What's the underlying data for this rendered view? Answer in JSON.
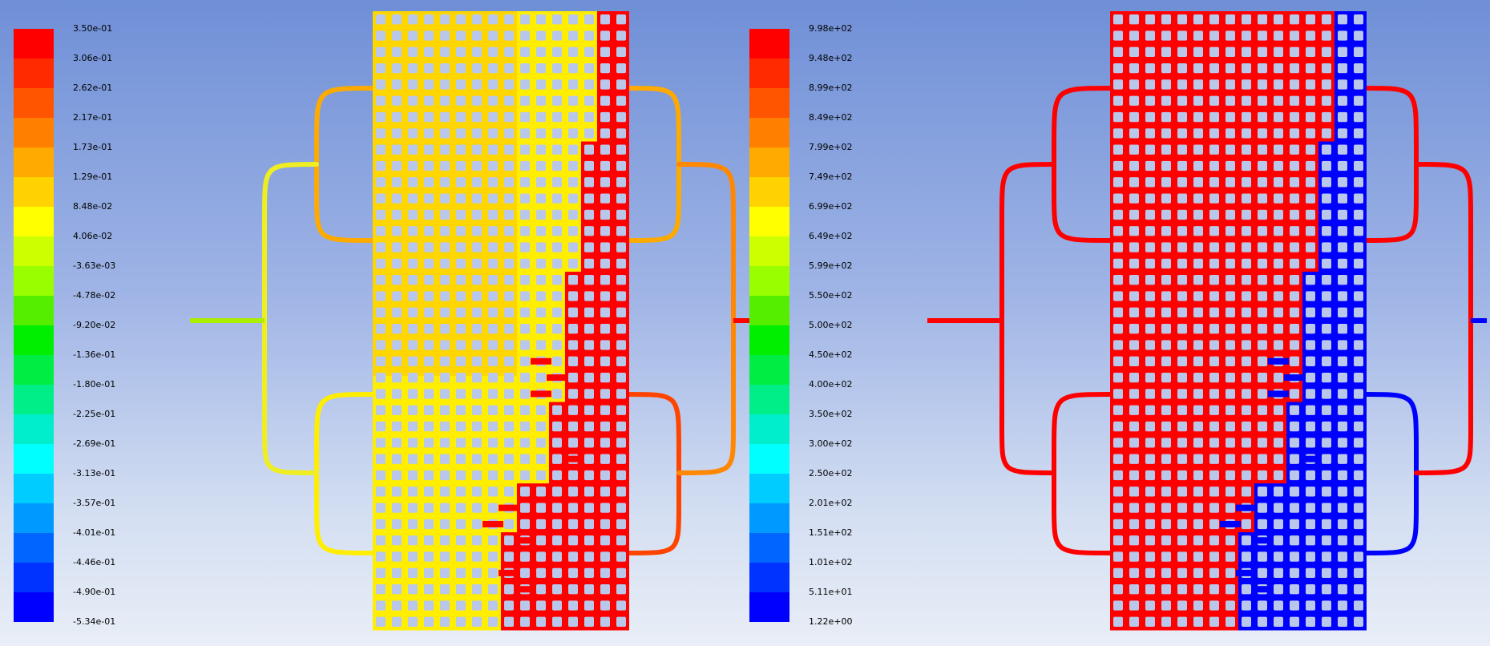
{
  "legend_left": {
    "labels": [
      "3.50e-01",
      "3.06e-01",
      "2.62e-01",
      "2.17e-01",
      "1.73e-01",
      "1.29e-01",
      "8.48e-02",
      "4.06e-02",
      "-3.63e-03",
      "-4.78e-02",
      "-9.20e-02",
      "-1.36e-01",
      "-1.80e-01",
      "-2.25e-01",
      "-2.69e-01",
      "-3.13e-01",
      "-3.57e-01",
      "-4.01e-01",
      "-4.46e-01",
      "-4.90e-01",
      "-5.34e-01"
    ]
  },
  "legend_right": {
    "labels": [
      "9.98e+02",
      "9.48e+02",
      "8.99e+02",
      "8.49e+02",
      "7.99e+02",
      "7.49e+02",
      "6.99e+02",
      "6.49e+02",
      "5.99e+02",
      "5.50e+02",
      "5.00e+02",
      "4.50e+02",
      "4.00e+02",
      "3.50e+02",
      "3.00e+02",
      "2.50e+02",
      "2.01e+02",
      "1.51e+02",
      "1.01e+02",
      "5.11e+01",
      "1.22e+00"
    ]
  },
  "colormap": [
    "#ff0000",
    "#ff2a00",
    "#ff5500",
    "#ff8000",
    "#ffaa00",
    "#ffd200",
    "#ffff00",
    "#ccff00",
    "#99ff00",
    "#55ee00",
    "#00ee00",
    "#00ee44",
    "#00ee88",
    "#00eecc",
    "#00ffff",
    "#00ccff",
    "#0099ff",
    "#0066ff",
    "#0033ff",
    "#0000ff"
  ],
  "colors": {
    "red": "#ff0000",
    "blue": "#0000ff",
    "yellow": "#ffee00",
    "orange": "#ffaa00",
    "green": "#aaee00"
  }
}
